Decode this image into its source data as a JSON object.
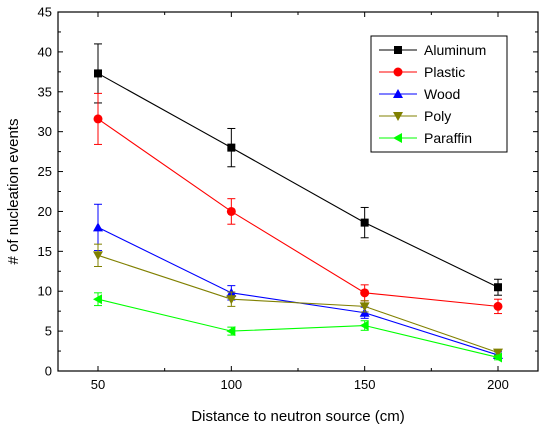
{
  "chart_data": {
    "type": "line",
    "title": "",
    "xlabel": "Distance to neutron source (cm)",
    "ylabel": "# of nucleation events",
    "x": [
      50,
      100,
      150,
      200
    ],
    "xlim": [
      35,
      215
    ],
    "ylim": [
      0,
      45
    ],
    "xticks": [
      50,
      100,
      150,
      200
    ],
    "yticks": [
      0,
      5,
      10,
      15,
      20,
      25,
      30,
      35,
      40,
      45
    ],
    "grid": false,
    "legend_position": "top-right",
    "series": [
      {
        "name": "Aluminum",
        "color": "#000000",
        "marker": "square",
        "values": [
          37.3,
          28.0,
          18.6,
          10.5
        ],
        "errors": [
          3.7,
          2.4,
          1.9,
          1.0
        ]
      },
      {
        "name": "Plastic",
        "color": "#ff0000",
        "marker": "circle",
        "values": [
          31.6,
          20.0,
          9.8,
          8.1
        ],
        "errors": [
          3.2,
          1.6,
          1.0,
          0.9
        ]
      },
      {
        "name": "Wood",
        "color": "#0000ff",
        "marker": "triangle-up",
        "values": [
          18.0,
          9.8,
          7.3,
          2.0
        ],
        "errors": [
          2.9,
          0.9,
          0.7,
          0.4
        ]
      },
      {
        "name": "Poly",
        "color": "#808000",
        "marker": "triangle-down",
        "values": [
          14.5,
          9.0,
          8.1,
          2.3
        ],
        "errors": [
          1.4,
          0.9,
          0.7,
          0.4
        ]
      },
      {
        "name": "Paraffin",
        "color": "#00ff00",
        "marker": "triangle-left",
        "values": [
          9.0,
          5.0,
          5.7,
          1.7
        ],
        "errors": [
          0.8,
          0.5,
          0.6,
          0.3
        ]
      }
    ]
  }
}
